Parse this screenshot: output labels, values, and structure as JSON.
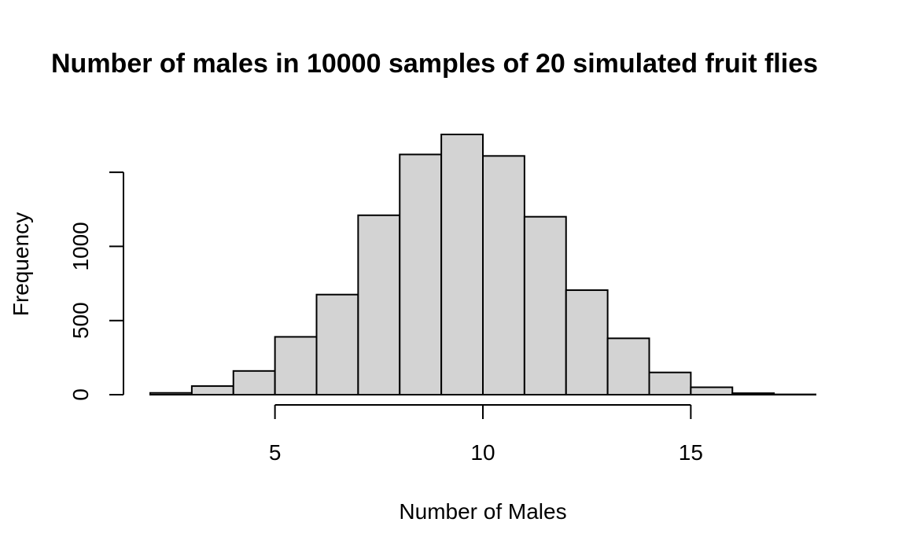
{
  "chart_data": {
    "type": "histogram",
    "title": "Number of males in 10000 samples of 20 simulated fruit flies",
    "xlabel": "Number of Males",
    "ylabel": "Frequency",
    "bin_edges": [
      2,
      3,
      4,
      5,
      6,
      7,
      8,
      9,
      10,
      11,
      12,
      13,
      14,
      15,
      16,
      17,
      18
    ],
    "values": [
      12,
      58,
      160,
      390,
      675,
      1210,
      1620,
      1755,
      1610,
      1200,
      705,
      380,
      150,
      50,
      10,
      2
    ],
    "xlim": [
      2,
      18
    ],
    "ylim": [
      0,
      1755
    ],
    "x_ticks": [
      5,
      10,
      15
    ],
    "x_tick_labels": [
      "5",
      "10",
      "15"
    ],
    "y_ticks": [
      0,
      500,
      1000,
      1500
    ],
    "y_tick_labels": [
      "0",
      "500",
      "1000",
      ""
    ],
    "bar_fill": "#d3d3d3",
    "bar_stroke": "#000000",
    "grid": false,
    "legend": "none"
  }
}
